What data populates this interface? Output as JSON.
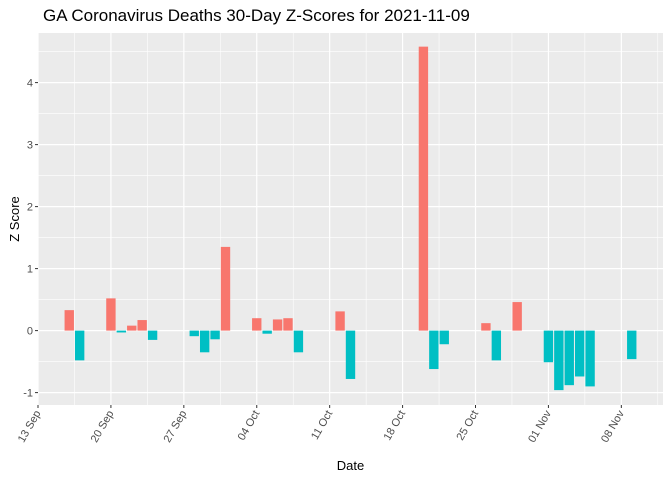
{
  "chart_data": {
    "type": "bar",
    "title": "GA Coronavirus Deaths 30-Day Z-Scores for 2021-11-09",
    "xlabel": "Date",
    "ylabel": "Z Score",
    "xlim": [
      "2021-09-13",
      "2021-11-12"
    ],
    "ylim": [
      -1.2,
      4.8
    ],
    "x_ticks": [
      {
        "date": "2021-09-13",
        "label": "13 Sep"
      },
      {
        "date": "2021-09-20",
        "label": "20 Sep"
      },
      {
        "date": "2021-09-27",
        "label": "27 Sep"
      },
      {
        "date": "2021-10-04",
        "label": "04 Oct"
      },
      {
        "date": "2021-10-11",
        "label": "11 Oct"
      },
      {
        "date": "2021-10-18",
        "label": "18 Oct"
      },
      {
        "date": "2021-10-25",
        "label": "25 Oct"
      },
      {
        "date": "2021-11-01",
        "label": "01 Nov"
      },
      {
        "date": "2021-11-08",
        "label": "08 Nov"
      }
    ],
    "y_ticks": [
      -1,
      0,
      1,
      2,
      3,
      4
    ],
    "grid": true,
    "legend": "none",
    "colors": {
      "positive": "#F8766D",
      "negative": "#00BFC4",
      "panel": "#EBEBEB",
      "grid": "#FFFFFF"
    },
    "points": [
      {
        "date": "2021-09-16",
        "value": 0.33
      },
      {
        "date": "2021-09-17",
        "value": -0.48
      },
      {
        "date": "2021-09-20",
        "value": 0.52
      },
      {
        "date": "2021-09-21",
        "value": -0.03
      },
      {
        "date": "2021-09-22",
        "value": 0.08
      },
      {
        "date": "2021-09-23",
        "value": 0.17
      },
      {
        "date": "2021-09-24",
        "value": -0.15
      },
      {
        "date": "2021-09-28",
        "value": -0.09
      },
      {
        "date": "2021-09-29",
        "value": -0.35
      },
      {
        "date": "2021-09-30",
        "value": -0.14
      },
      {
        "date": "2021-10-01",
        "value": 1.35
      },
      {
        "date": "2021-10-04",
        "value": 0.2
      },
      {
        "date": "2021-10-05",
        "value": -0.05
      },
      {
        "date": "2021-10-06",
        "value": 0.18
      },
      {
        "date": "2021-10-07",
        "value": 0.2
      },
      {
        "date": "2021-10-08",
        "value": -0.35
      },
      {
        "date": "2021-10-12",
        "value": 0.31
      },
      {
        "date": "2021-10-13",
        "value": -0.78
      },
      {
        "date": "2021-10-20",
        "value": 4.58
      },
      {
        "date": "2021-10-21",
        "value": -0.62
      },
      {
        "date": "2021-10-22",
        "value": -0.22
      },
      {
        "date": "2021-10-26",
        "value": 0.12
      },
      {
        "date": "2021-10-27",
        "value": -0.48
      },
      {
        "date": "2021-10-29",
        "value": 0.46
      },
      {
        "date": "2021-11-01",
        "value": -0.51
      },
      {
        "date": "2021-11-02",
        "value": -0.96
      },
      {
        "date": "2021-11-03",
        "value": -0.88
      },
      {
        "date": "2021-11-04",
        "value": -0.74
      },
      {
        "date": "2021-11-05",
        "value": -0.9
      },
      {
        "date": "2021-11-09",
        "value": -0.46
      }
    ]
  }
}
